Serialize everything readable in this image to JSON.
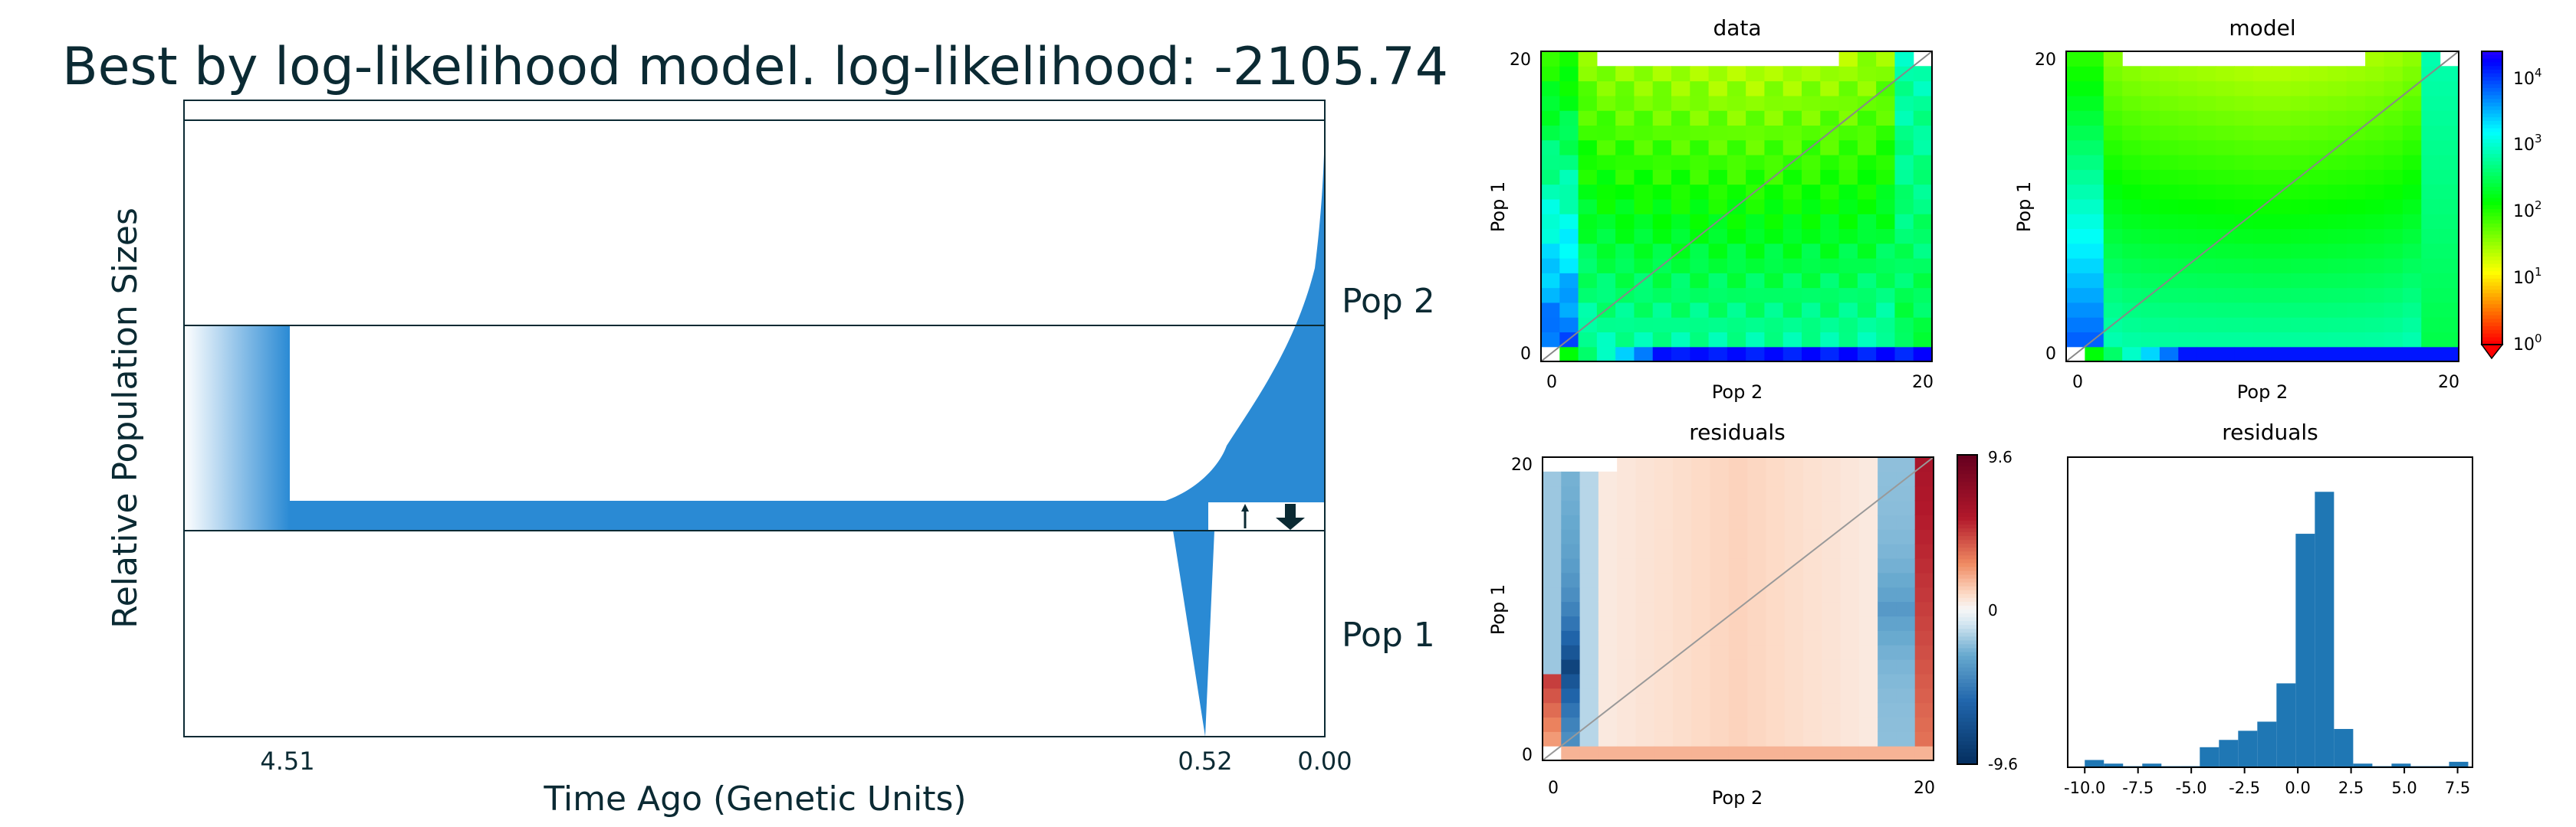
{
  "chart_data": [
    {
      "type": "area",
      "title": "Best by log-likelihood model. log-likelihood: -2105.74",
      "xlabel": "Time Ago (Genetic Units)",
      "ylabel": "Relative Population Sizes",
      "x_ticks": [
        "4.51",
        "0.52",
        "0.00"
      ],
      "populations": [
        "Pop 2",
        "Pop 1"
      ],
      "split_time": 4.51,
      "event_time": 0.52,
      "color": "#2a8ad4"
    },
    {
      "type": "heatmap",
      "title": "data",
      "xlabel": "Pop 2",
      "ylabel": "Pop 1",
      "x_ticks": [
        "0",
        "20"
      ],
      "y_ticks": [
        "0",
        "20"
      ],
      "grid_size": 21,
      "colormap": "hsv",
      "scale": "log"
    },
    {
      "type": "heatmap",
      "title": "model",
      "xlabel": "Pop 2",
      "ylabel": "Pop 1",
      "x_ticks": [
        "0",
        "20"
      ],
      "y_ticks": [
        "0",
        "20"
      ],
      "grid_size": 21,
      "colorbar": {
        "scale": "log",
        "labels": [
          {
            "base": "10",
            "exp": "4"
          },
          {
            "base": "10",
            "exp": "3"
          },
          {
            "base": "10",
            "exp": "2"
          },
          {
            "base": "10",
            "exp": "1"
          },
          {
            "base": "10",
            "exp": "0"
          }
        ]
      }
    },
    {
      "type": "heatmap",
      "title": "residuals",
      "xlabel": "Pop 2",
      "ylabel": "Pop 1",
      "x_ticks": [
        "0",
        "20"
      ],
      "y_ticks": [
        "0",
        "20"
      ],
      "grid_size": 21,
      "colormap": "RdBu_r",
      "colorbar": {
        "min": -9.6,
        "max": 9.6,
        "labels": [
          "9.6",
          "0",
          "-9.6"
        ]
      }
    },
    {
      "type": "bar",
      "title": "residuals",
      "x_ticks": [
        "-10.0",
        "-7.5",
        "-5.0",
        "-2.5",
        "0.0",
        "2.5",
        "5.0",
        "7.5"
      ],
      "xlim": [
        -10.8,
        8.2
      ],
      "bins": [
        {
          "x0": -10.0,
          "x1": -9.1,
          "v": 4
        },
        {
          "x0": -9.1,
          "x1": -8.2,
          "v": 2
        },
        {
          "x0": -8.2,
          "x1": -7.3,
          "v": 0.6
        },
        {
          "x0": -7.3,
          "x1": -6.4,
          "v": 2
        },
        {
          "x0": -6.4,
          "x1": -5.5,
          "v": 0.6
        },
        {
          "x0": -5.5,
          "x1": -4.6,
          "v": 0.6
        },
        {
          "x0": -4.6,
          "x1": -3.7,
          "v": 11
        },
        {
          "x0": -3.7,
          "x1": -2.8,
          "v": 15
        },
        {
          "x0": -2.8,
          "x1": -1.9,
          "v": 20
        },
        {
          "x0": -1.9,
          "x1": -1.0,
          "v": 25
        },
        {
          "x0": -1.0,
          "x1": -0.1,
          "v": 46
        },
        {
          "x0": -0.1,
          "x1": 0.8,
          "v": 128
        },
        {
          "x0": 0.8,
          "x1": 1.7,
          "v": 151
        },
        {
          "x0": 1.7,
          "x1": 2.6,
          "v": 21
        },
        {
          "x0": 2.6,
          "x1": 3.5,
          "v": 2
        },
        {
          "x0": 3.5,
          "x1": 4.4,
          "v": 0.6
        },
        {
          "x0": 4.4,
          "x1": 5.3,
          "v": 2
        },
        {
          "x0": 5.3,
          "x1": 6.2,
          "v": 0.6
        },
        {
          "x0": 6.2,
          "x1": 7.1,
          "v": 0.6
        },
        {
          "x0": 7.1,
          "x1": 8.0,
          "v": 3
        }
      ],
      "ylim": [
        0,
        170
      ],
      "color": "#1f77b4"
    }
  ]
}
